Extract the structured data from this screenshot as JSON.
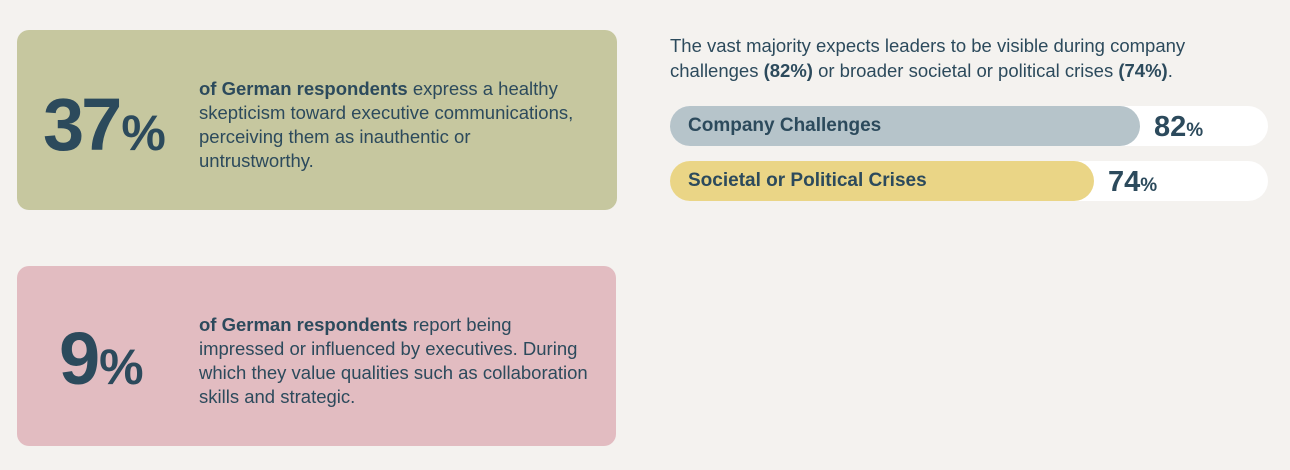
{
  "card_skepticism": {
    "number": "37",
    "percent_sign": "%",
    "bold_text": "of German respondents",
    "text": " express a healthy skepticism toward executive communications, perceiving them as inauthentic or untrustworthy.",
    "color": "#c6c79f"
  },
  "card_impressed": {
    "number": "9",
    "percent_sign": "%",
    "bold_text": "of German respondents",
    "text": " report being impressed or influenced by executives. During which they value qualities such as collaboration skills and strategic.",
    "color": "#e2bcc1"
  },
  "intro": {
    "part1": "The vast majority expects leaders to be visible during company challenges ",
    "bold1": "(82%)",
    "part2": " or broader societal or political crises ",
    "bold2": "(74%)",
    "part3": "."
  },
  "chart_data": {
    "type": "bar",
    "orientation": "horizontal",
    "categories": [
      "Company Challenges",
      "Societal or Political Crises"
    ],
    "values": [
      82,
      74
    ],
    "value_labels": [
      "82",
      "74"
    ],
    "unit": "%",
    "colors": [
      "#b6c4ca",
      "#ead586"
    ],
    "track_color": "#ffffff",
    "xlim": [
      0,
      100
    ]
  }
}
